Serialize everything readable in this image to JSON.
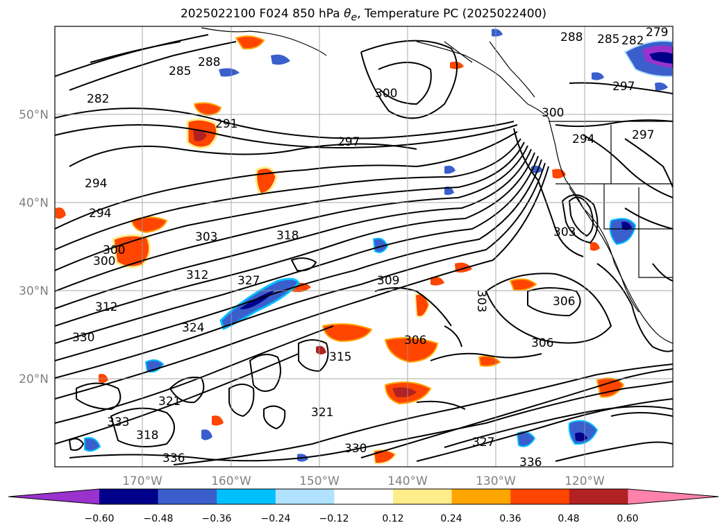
{
  "title": {
    "prefix": "2025022100 F024 850 hPa ",
    "symbol": "θ",
    "subscript": "e",
    "suffix": ", Temperature PC (2025022400)"
  },
  "map": {
    "lat_labels": [
      "50°N",
      "40°N",
      "30°N",
      "20°N"
    ],
    "lon_labels": [
      "170°W",
      "160°W",
      "150°W",
      "140°W",
      "130°W",
      "120°W"
    ],
    "gridlines": true,
    "contour_color": "#000000",
    "contour_labels": [
      "288",
      "285",
      "282",
      "279",
      "282",
      "285",
      "288",
      "291",
      "294",
      "294",
      "297",
      "297",
      "300",
      "300",
      "300",
      "303",
      "303",
      "306",
      "306",
      "306",
      "309",
      "312",
      "312",
      "315",
      "318",
      "318",
      "321",
      "321",
      "324",
      "327",
      "327",
      "330",
      "330",
      "333",
      "336",
      "336",
      "303",
      "300",
      "294",
      "297"
    ]
  },
  "colorbar": {
    "ticks": [
      "−0.60",
      "−0.48",
      "−0.36",
      "−0.24",
      "−0.12",
      "0.12",
      "0.24",
      "0.36",
      "0.48",
      "0.60"
    ],
    "colors": [
      "#9a32cd",
      "#00008b",
      "#3a5fcd",
      "#00bfff",
      "#b0e2ff",
      "#ffffff",
      "#ffec8b",
      "#ffa500",
      "#ff4500",
      "#b22222",
      "#ff82ab"
    ],
    "extend": "both"
  }
}
